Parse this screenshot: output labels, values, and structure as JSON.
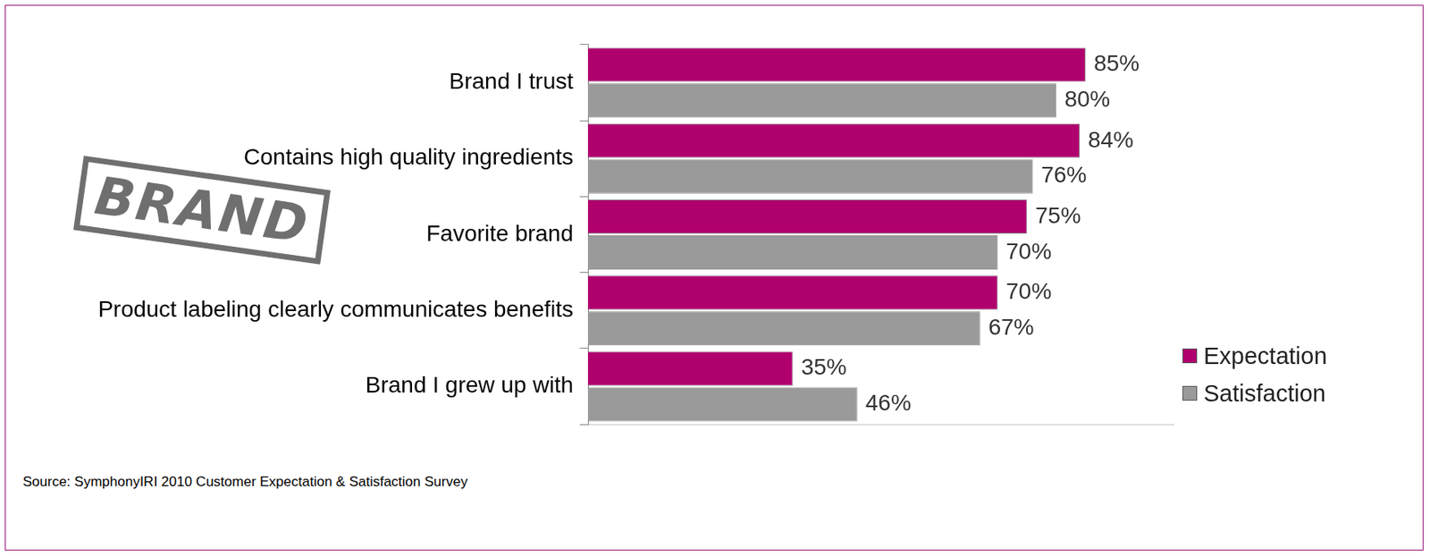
{
  "chart_data": {
    "type": "bar",
    "orientation": "horizontal",
    "categories": [
      "Brand I trust",
      "Contains high quality ingredients",
      "Favorite brand",
      "Product labeling clearly communicates benefits",
      "Brand I grew up with"
    ],
    "series": [
      {
        "name": "Expectation",
        "color": "#b0006e",
        "values": [
          85,
          84,
          75,
          70,
          35
        ],
        "value_labels": [
          "85%",
          "84%",
          "75%",
          "70%",
          "35%"
        ]
      },
      {
        "name": "Satisfaction",
        "color": "#9a9a9a",
        "values": [
          80,
          76,
          70,
          67,
          46
        ],
        "value_labels": [
          "80%",
          "76%",
          "70%",
          "67%",
          "46%"
        ]
      }
    ],
    "xlim": [
      0,
      100
    ],
    "grid": false,
    "legend": "lower right",
    "data_labels": true,
    "tick_labels": "y",
    "annotations": [
      "BRAND"
    ],
    "note": "Source:  SymphonyIRI 2010 Customer Expectation & Satisfaction Survey"
  }
}
